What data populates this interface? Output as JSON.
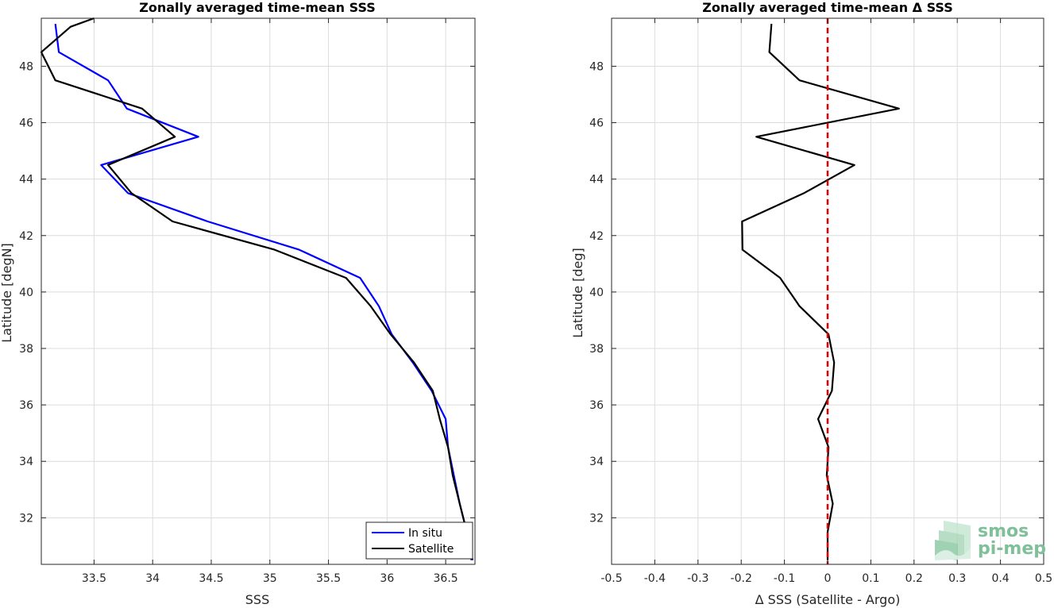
{
  "chart_data": [
    {
      "type": "line",
      "title": "Zonally averaged time-mean SSS",
      "xlabel": "SSS",
      "ylabel": "Latitude [degN]",
      "xlim": [
        33.05,
        36.75
      ],
      "ylim": [
        30.35,
        49.7
      ],
      "xticks": [
        33.5,
        34,
        34.5,
        35,
        35.5,
        36,
        36.5
      ],
      "xtick_labels": [
        "33.5",
        "34",
        "34.5",
        "35",
        "35.5",
        "36",
        "36.5"
      ],
      "yticks": [
        32,
        34,
        36,
        38,
        40,
        42,
        44,
        46,
        48
      ],
      "ytick_labels": [
        "32",
        "34",
        "36",
        "38",
        "40",
        "42",
        "44",
        "46",
        "48"
      ],
      "grid": true,
      "legend": "bottom-right",
      "series": [
        {
          "name": "In situ",
          "color": "#0000ff",
          "points": [
            [
              33.17,
              49.5
            ],
            [
              33.2,
              48.5
            ],
            [
              33.62,
              47.5
            ],
            [
              33.78,
              46.5
            ],
            [
              34.39,
              45.5
            ],
            [
              33.56,
              44.5
            ],
            [
              33.79,
              43.5
            ],
            [
              34.47,
              42.5
            ],
            [
              35.25,
              41.5
            ],
            [
              35.77,
              40.5
            ],
            [
              35.93,
              39.5
            ],
            [
              36.04,
              38.5
            ],
            [
              36.22,
              37.5
            ],
            [
              36.38,
              36.5
            ],
            [
              36.5,
              35.5
            ],
            [
              36.52,
              34.5
            ],
            [
              36.57,
              33.5
            ],
            [
              36.62,
              32.5
            ],
            [
              36.68,
              31.5
            ],
            [
              36.73,
              30.5
            ]
          ]
        },
        {
          "name": "Satellite",
          "color": "#000000",
          "points": [
            [
              33.5,
              49.7
            ],
            [
              33.3,
              49.4
            ],
            [
              33.05,
              48.5
            ],
            [
              33.17,
              47.5
            ],
            [
              33.91,
              46.5
            ],
            [
              34.19,
              45.5
            ],
            [
              33.62,
              44.5
            ],
            [
              33.82,
              43.5
            ],
            [
              34.17,
              42.5
            ],
            [
              35.04,
              41.5
            ],
            [
              35.65,
              40.5
            ],
            [
              35.86,
              39.5
            ],
            [
              36.03,
              38.5
            ],
            [
              36.23,
              37.5
            ],
            [
              36.39,
              36.5
            ],
            [
              36.45,
              35.5
            ],
            [
              36.52,
              34.5
            ],
            [
              36.56,
              33.5
            ],
            [
              36.62,
              32.5
            ],
            [
              36.68,
              31.5
            ],
            [
              36.72,
              30.5
            ]
          ]
        }
      ]
    },
    {
      "type": "line",
      "title": "Zonally averaged time-mean Δ SSS",
      "xlabel": "Δ SSS (Satellite - Argo)",
      "ylabel": "Latitude [deg]",
      "xlim": [
        -0.5,
        0.5
      ],
      "ylim": [
        30.35,
        49.7
      ],
      "xticks": [
        -0.5,
        -0.4,
        -0.3,
        -0.2,
        -0.1,
        0,
        0.1,
        0.2,
        0.3,
        0.4,
        0.5
      ],
      "xtick_labels": [
        "-0.5",
        "-0.4",
        "-0.3",
        "-0.2",
        "-0.1",
        "0",
        "0.1",
        "0.2",
        "0.3",
        "0.4",
        "0.5"
      ],
      "yticks": [
        32,
        34,
        36,
        38,
        40,
        42,
        44,
        46,
        48
      ],
      "ytick_labels": [
        "32",
        "34",
        "36",
        "38",
        "40",
        "42",
        "44",
        "46",
        "48"
      ],
      "grid": true,
      "reference_line": {
        "x": 0,
        "color": "#e00000",
        "style": "dashed"
      },
      "series": [
        {
          "color": "#000000",
          "points": [
            [
              -0.13,
              49.5
            ],
            [
              -0.135,
              48.5
            ],
            [
              -0.065,
              47.5
            ],
            [
              0.165,
              46.5
            ],
            [
              -0.165,
              45.5
            ],
            [
              0.062,
              44.5
            ],
            [
              -0.055,
              43.5
            ],
            [
              -0.198,
              42.5
            ],
            [
              -0.197,
              41.5
            ],
            [
              -0.11,
              40.5
            ],
            [
              -0.065,
              39.5
            ],
            [
              0.002,
              38.5
            ],
            [
              0.015,
              37.5
            ],
            [
              0.01,
              36.5
            ],
            [
              -0.022,
              35.5
            ],
            [
              0.002,
              34.5
            ],
            [
              -0.002,
              33.5
            ],
            [
              0.012,
              32.5
            ],
            [
              0.0,
              31.5
            ],
            [
              0.0,
              30.5
            ]
          ]
        }
      ]
    }
  ],
  "logo": {
    "line1": "smos",
    "line2": "pi-mep",
    "color": "#7fbf9a"
  }
}
